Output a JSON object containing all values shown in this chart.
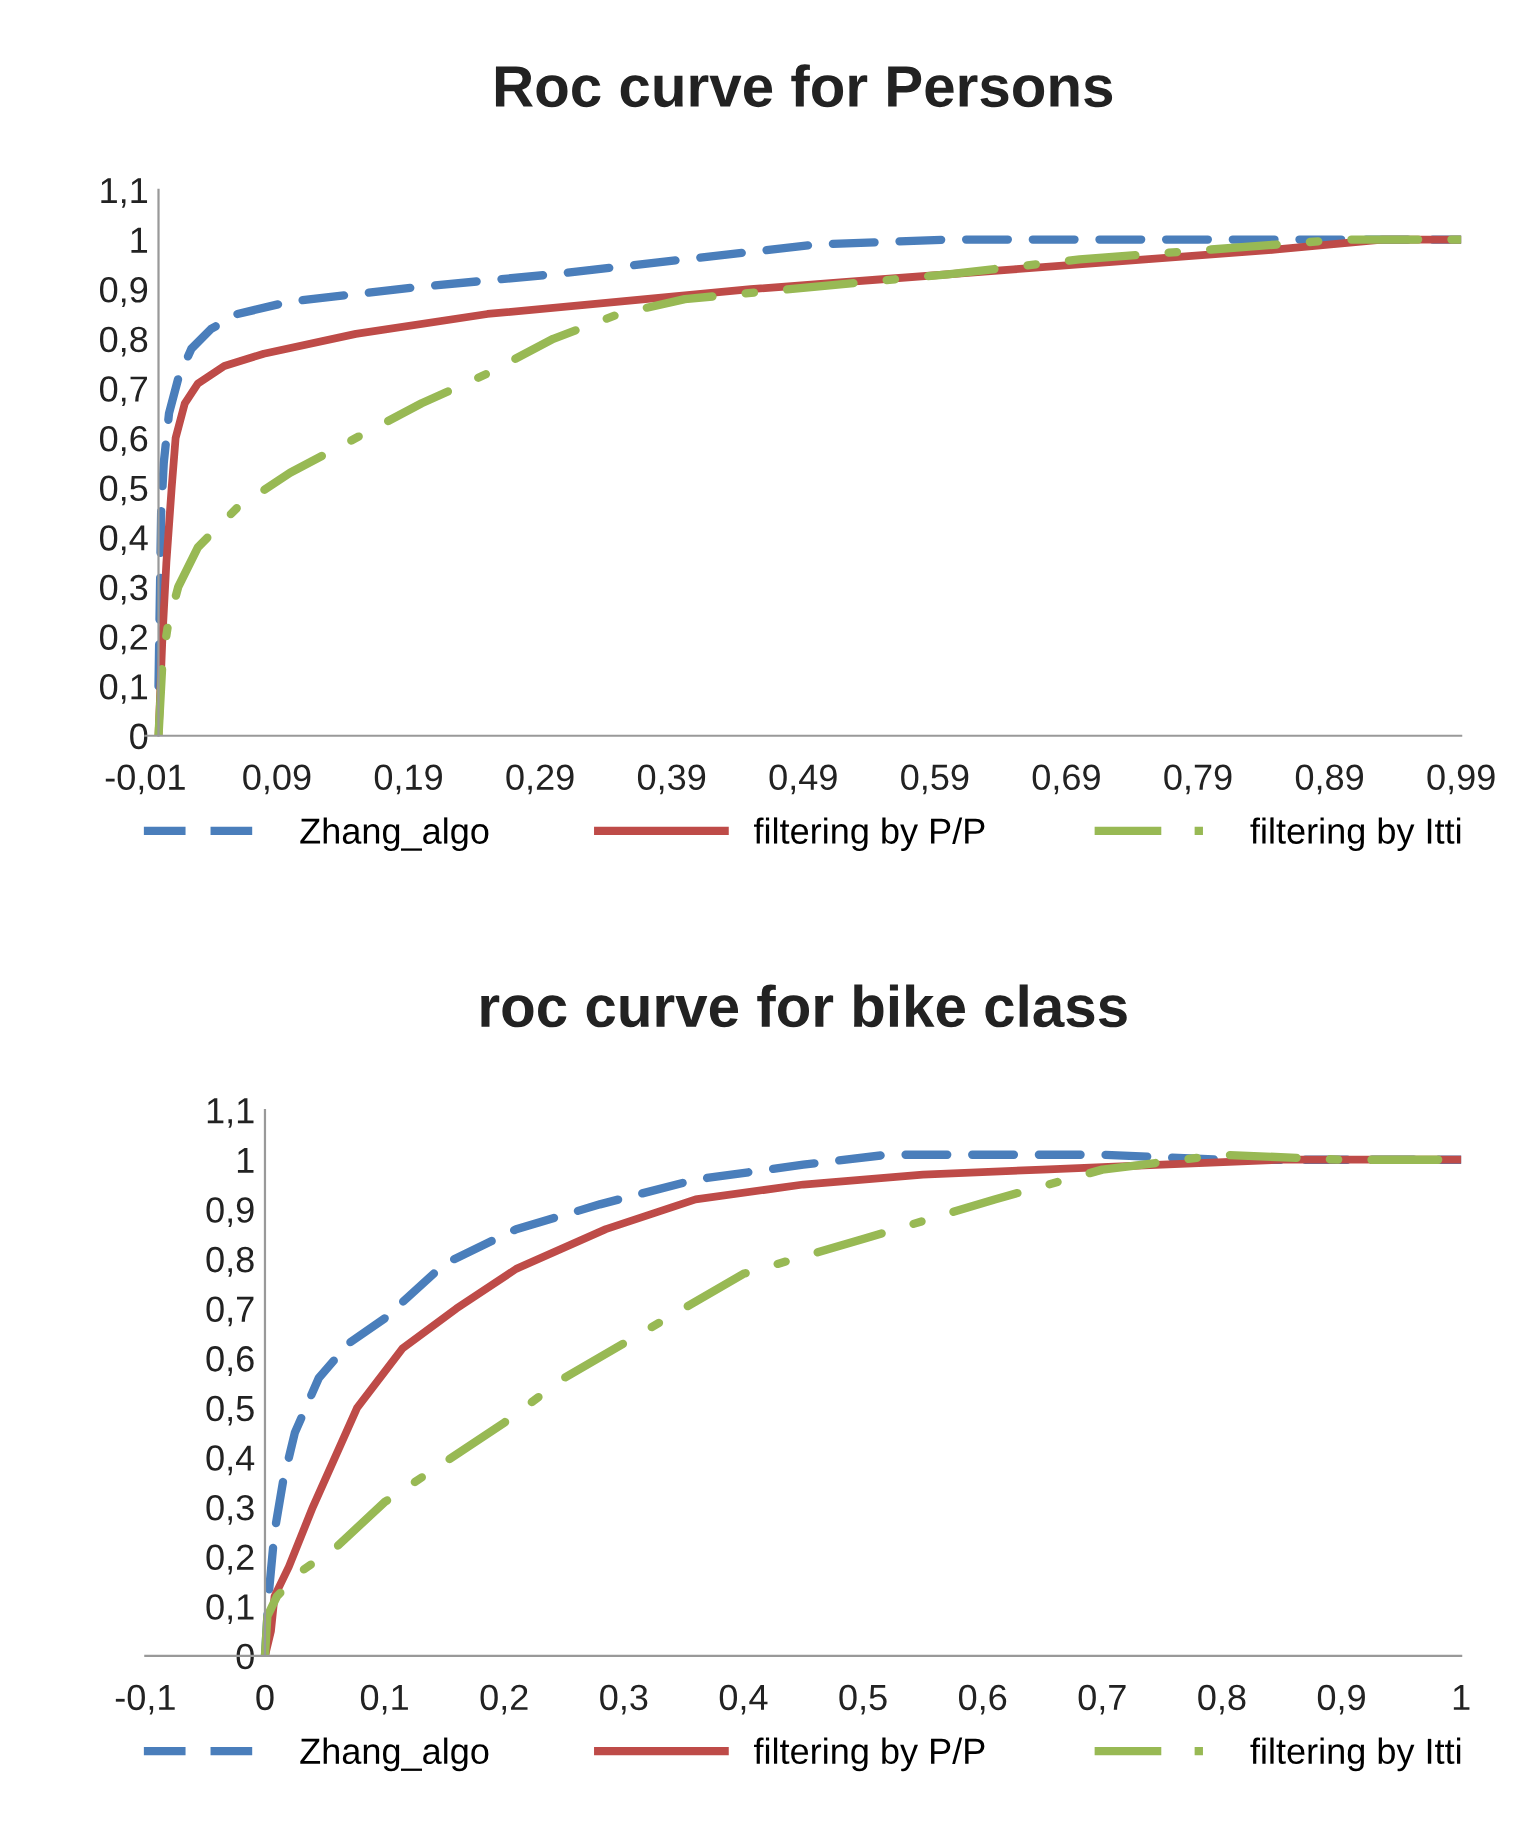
{
  "chart_data": [
    {
      "type": "line",
      "title": "Roc curve for Persons",
      "xlim": [
        -0.01,
        0.99
      ],
      "ylim": [
        0,
        1.1
      ],
      "xticks": [
        {
          "value": -0.01,
          "label": "-0,01"
        },
        {
          "value": 0.09,
          "label": "0,09"
        },
        {
          "value": 0.19,
          "label": "0,19"
        },
        {
          "value": 0.29,
          "label": "0,29"
        },
        {
          "value": 0.39,
          "label": "0,39"
        },
        {
          "value": 0.49,
          "label": "0,49"
        },
        {
          "value": 0.59,
          "label": "0,59"
        },
        {
          "value": 0.69,
          "label": "0,69"
        },
        {
          "value": 0.79,
          "label": "0,79"
        },
        {
          "value": 0.89,
          "label": "0,89"
        },
        {
          "value": 0.99,
          "label": "0,99"
        }
      ],
      "yticks": [
        0,
        {
          "value": 0.1,
          "label": "0,1"
        },
        {
          "value": 0.2,
          "label": "0,2"
        },
        {
          "value": 0.3,
          "label": "0,3"
        },
        {
          "value": 0.4,
          "label": "0,4"
        },
        {
          "value": 0.5,
          "label": "0,5"
        },
        {
          "value": 0.6,
          "label": "0,6"
        },
        {
          "value": 0.7,
          "label": "0,7"
        },
        {
          "value": 0.8,
          "label": "0,8"
        },
        {
          "value": 0.9,
          "label": "0,9"
        },
        1,
        {
          "value": 1.1,
          "label": "1,1"
        }
      ],
      "grid": false,
      "legend": "bottom",
      "marker": "none",
      "series": [
        {
          "name": "Zhang_algo",
          "color": "#4a7ebb",
          "line_style": "dashed",
          "x": [
            0,
            0.002,
            0.004,
            0.008,
            0.015,
            0.025,
            0.04,
            0.06,
            0.1,
            0.2,
            0.3,
            0.4,
            0.5,
            0.6,
            0.8,
            0.99
          ],
          "values": [
            0.1,
            0.45,
            0.55,
            0.65,
            0.72,
            0.78,
            0.82,
            0.85,
            0.875,
            0.905,
            0.93,
            0.96,
            0.99,
            1.0,
            1.0,
            1.0
          ]
        },
        {
          "name": "filtering by P/P",
          "color": "#be4b48",
          "line_style": "solid",
          "x": [
            0,
            0.003,
            0.006,
            0.01,
            0.013,
            0.02,
            0.03,
            0.05,
            0.08,
            0.15,
            0.25,
            0.35,
            0.45,
            0.55,
            0.65,
            0.75,
            0.85,
            0.93,
            0.99
          ],
          "values": [
            0,
            0.2,
            0.35,
            0.5,
            0.6,
            0.67,
            0.71,
            0.745,
            0.77,
            0.81,
            0.85,
            0.875,
            0.9,
            0.92,
            0.94,
            0.96,
            0.98,
            1.0,
            1.0
          ]
        },
        {
          "name": "filtering by Itti",
          "color": "#98b954",
          "line_style": "dashdot",
          "x": [
            0,
            0.003,
            0.007,
            0.015,
            0.03,
            0.06,
            0.1,
            0.15,
            0.2,
            0.25,
            0.3,
            0.35,
            0.4,
            0.5,
            0.6,
            0.7,
            0.8,
            0.9,
            0.99
          ],
          "values": [
            0,
            0.15,
            0.22,
            0.3,
            0.38,
            0.46,
            0.53,
            0.6,
            0.67,
            0.73,
            0.8,
            0.85,
            0.88,
            0.905,
            0.93,
            0.96,
            0.98,
            1.0,
            1.0
          ]
        }
      ]
    },
    {
      "type": "line",
      "title": "roc curve for bike class",
      "xlim": [
        -0.1,
        1
      ],
      "ylim": [
        0,
        1.1
      ],
      "xticks": [
        {
          "value": -0.1,
          "label": "-0,1"
        },
        0,
        {
          "value": 0.1,
          "label": "0,1"
        },
        {
          "value": 0.2,
          "label": "0,2"
        },
        {
          "value": 0.3,
          "label": "0,3"
        },
        {
          "value": 0.4,
          "label": "0,4"
        },
        {
          "value": 0.5,
          "label": "0,5"
        },
        {
          "value": 0.6,
          "label": "0,6"
        },
        {
          "value": 0.7,
          "label": "0,7"
        },
        {
          "value": 0.8,
          "label": "0,8"
        },
        {
          "value": 0.9,
          "label": "0,9"
        },
        1
      ],
      "yticks": [
        0,
        {
          "value": 0.1,
          "label": "0,1"
        },
        {
          "value": 0.2,
          "label": "0,2"
        },
        {
          "value": 0.3,
          "label": "0,3"
        },
        {
          "value": 0.4,
          "label": "0,4"
        },
        {
          "value": 0.5,
          "label": "0,5"
        },
        {
          "value": 0.6,
          "label": "0,6"
        },
        {
          "value": 0.7,
          "label": "0,7"
        },
        {
          "value": 0.8,
          "label": "0,8"
        },
        {
          "value": 0.9,
          "label": "0,9"
        },
        1,
        {
          "value": 1.1,
          "label": "1,1"
        }
      ],
      "grid": false,
      "legend": "bottom",
      "marker": "none",
      "series": [
        {
          "name": "Zhang_algo",
          "color": "#4a7ebb",
          "line_style": "dashed",
          "x": [
            0,
            0.003,
            0.008,
            0.015,
            0.025,
            0.045,
            0.07,
            0.1,
            0.15,
            0.21,
            0.28,
            0.36,
            0.45,
            0.52,
            0.7,
            0.8,
            1
          ],
          "values": [
            0,
            0.12,
            0.25,
            0.35,
            0.45,
            0.56,
            0.63,
            0.68,
            0.79,
            0.86,
            0.91,
            0.96,
            0.99,
            1.01,
            1.01,
            1.0,
            1.0
          ]
        },
        {
          "name": "filtering by P/P",
          "color": "#be4b48",
          "line_style": "solid",
          "x": [
            0,
            0.005,
            0.008,
            0.02,
            0.04,
            0.077,
            0.115,
            0.16,
            0.21,
            0.285,
            0.36,
            0.45,
            0.55,
            0.65,
            0.75,
            0.85,
            1
          ],
          "values": [
            0,
            0.05,
            0.12,
            0.18,
            0.3,
            0.5,
            0.62,
            0.7,
            0.78,
            0.86,
            0.92,
            0.95,
            0.97,
            0.98,
            0.99,
            1.0,
            1.0
          ]
        },
        {
          "name": "filtering by Itti",
          "color": "#98b954",
          "line_style": "dashdot",
          "x": [
            0,
            0.002,
            0.01,
            0.03,
            0.06,
            0.1,
            0.15,
            0.2,
            0.25,
            0.3,
            0.35,
            0.4,
            0.5,
            0.61,
            0.7,
            0.8,
            0.9,
            1
          ],
          "values": [
            0,
            0.08,
            0.12,
            0.17,
            0.22,
            0.31,
            0.39,
            0.47,
            0.56,
            0.63,
            0.7,
            0.77,
            0.84,
            0.92,
            0.98,
            1.01,
            1.0,
            1.0
          ]
        }
      ]
    }
  ]
}
